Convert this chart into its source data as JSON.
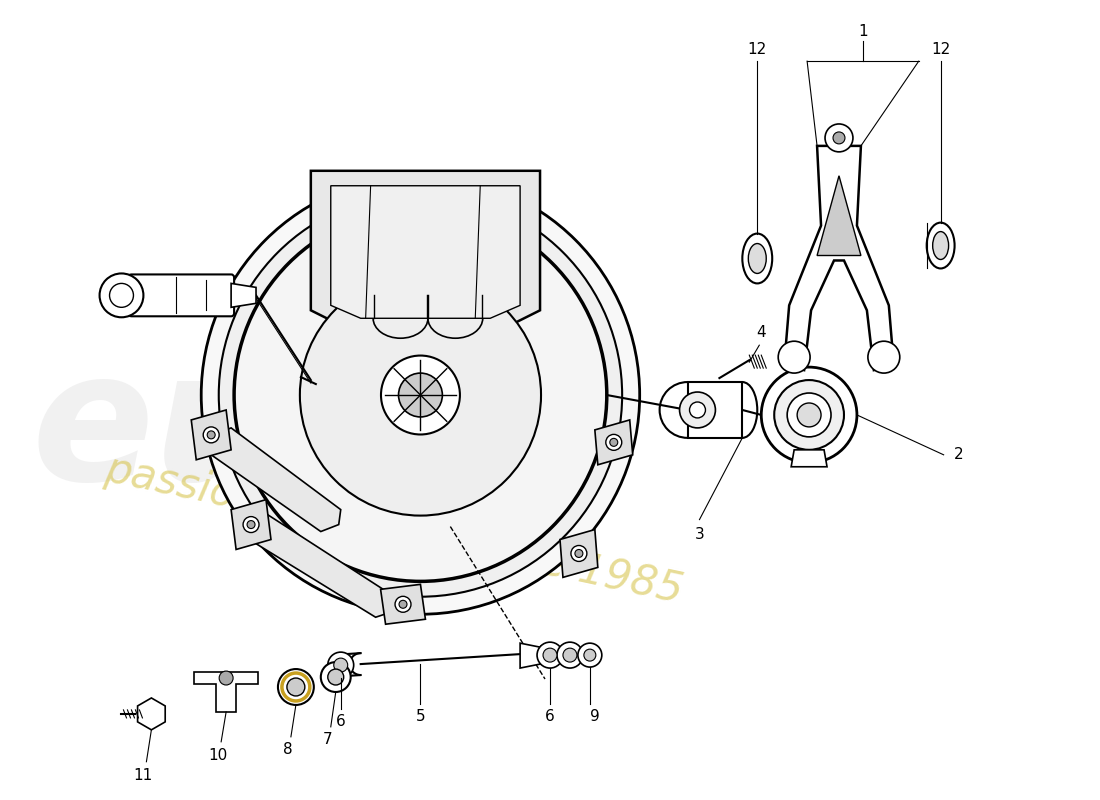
{
  "background_color": "#ffffff",
  "line_color": "#000000",
  "fig_width": 11.0,
  "fig_height": 8.0
}
